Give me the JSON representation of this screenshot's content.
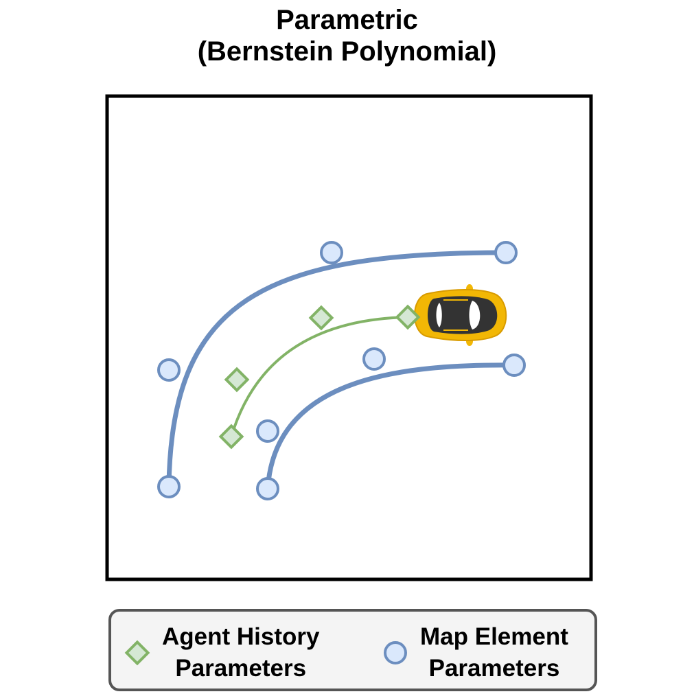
{
  "title": {
    "line1": "Parametric",
    "line2": "(Bernstein Polynomial)"
  },
  "legend": {
    "agent_history": {
      "line1": "Agent History",
      "line2": "Parameters"
    },
    "map_element": {
      "line1": "Map Element",
      "line2": "Parameters"
    }
  },
  "colors": {
    "map_line": "#6c8ebf",
    "map_marker_fill": "#dae8fc",
    "agent_line": "#82b366",
    "agent_marker_fill": "#d5e8d4",
    "car_body": "#f2b705",
    "car_cabin": "#333333",
    "frame": "#000000",
    "legend_border": "#555555",
    "legend_fill": "#f4f4f4"
  },
  "icons": {
    "vehicle": "car-top-view-icon",
    "agent_marker": "diamond-icon",
    "map_marker": "circle-icon"
  }
}
